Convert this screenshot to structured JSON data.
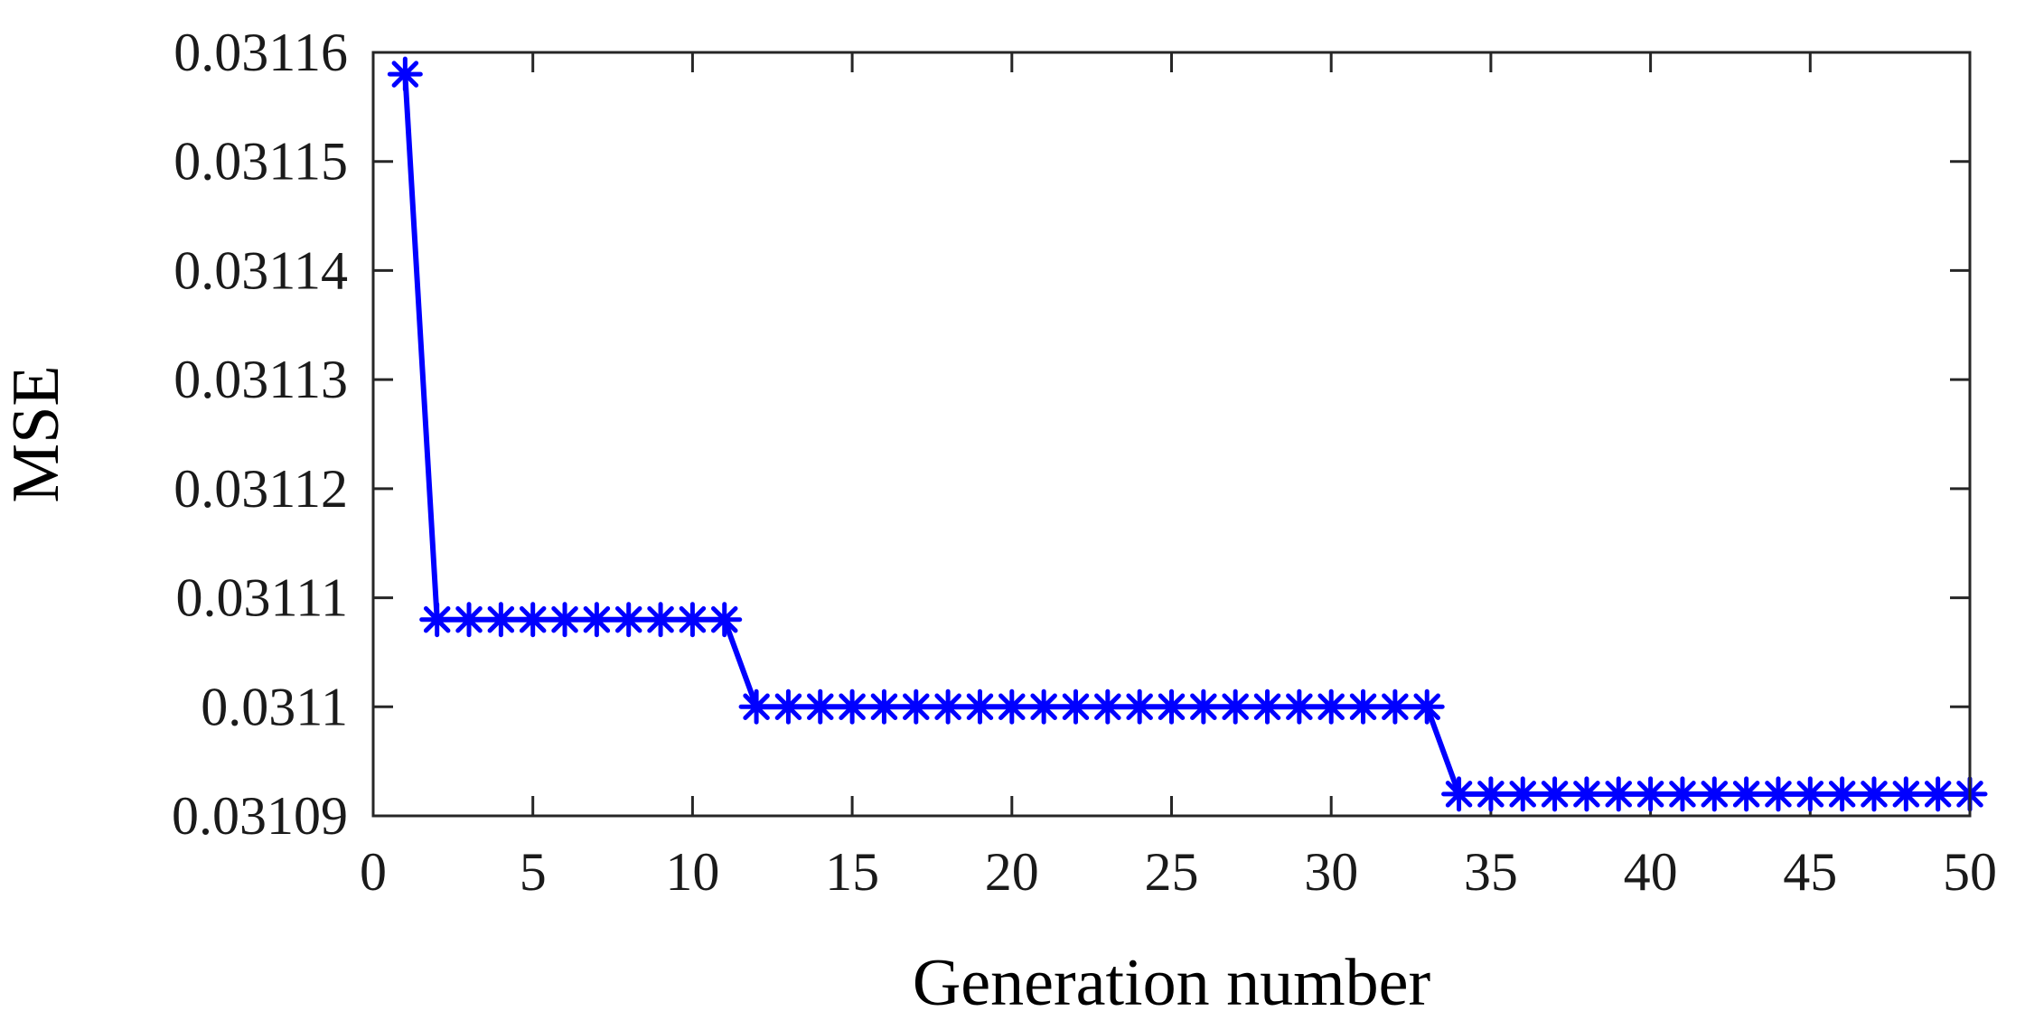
{
  "chart_data": {
    "type": "line",
    "title": "",
    "xlabel": "Generation number",
    "ylabel": "MSE",
    "xlim": [
      0,
      50
    ],
    "ylim": [
      0.03109,
      0.03116
    ],
    "x_ticks": [
      0,
      5,
      10,
      15,
      20,
      25,
      30,
      35,
      40,
      45,
      50
    ],
    "x_tick_labels": [
      "0",
      "5",
      "10",
      "15",
      "20",
      "25",
      "30",
      "35",
      "40",
      "45",
      "50"
    ],
    "y_ticks": [
      0.03109,
      0.0311,
      0.03111,
      0.03112,
      0.03113,
      0.03114,
      0.03115,
      0.03116
    ],
    "y_tick_labels": [
      "0.03109",
      "0.0311",
      "0.03111",
      "0.03112",
      "0.03113",
      "0.03114",
      "0.03115",
      "0.03116"
    ],
    "grid": false,
    "legend": "none",
    "marker": "asterisk",
    "series": [
      {
        "color": "#0000ff",
        "x": [
          1,
          2,
          3,
          4,
          5,
          6,
          7,
          8,
          9,
          10,
          11,
          12,
          13,
          14,
          15,
          16,
          17,
          18,
          19,
          20,
          21,
          22,
          23,
          24,
          25,
          26,
          27,
          28,
          29,
          30,
          31,
          32,
          33,
          34,
          35,
          36,
          37,
          38,
          39,
          40,
          41,
          42,
          43,
          44,
          45,
          46,
          47,
          48,
          49,
          50
        ],
        "values": [
          0.031158,
          0.031108,
          0.031108,
          0.031108,
          0.031108,
          0.031108,
          0.031108,
          0.031108,
          0.031108,
          0.031108,
          0.031108,
          0.0311,
          0.0311,
          0.0311,
          0.0311,
          0.0311,
          0.0311,
          0.0311,
          0.0311,
          0.0311,
          0.0311,
          0.0311,
          0.0311,
          0.0311,
          0.0311,
          0.0311,
          0.0311,
          0.0311,
          0.0311,
          0.0311,
          0.0311,
          0.0311,
          0.0311,
          0.031092,
          0.031092,
          0.031092,
          0.031092,
          0.031092,
          0.031092,
          0.031092,
          0.031092,
          0.031092,
          0.031092,
          0.031092,
          0.031092,
          0.031092,
          0.031092,
          0.031092,
          0.031092,
          0.031092
        ]
      }
    ]
  }
}
